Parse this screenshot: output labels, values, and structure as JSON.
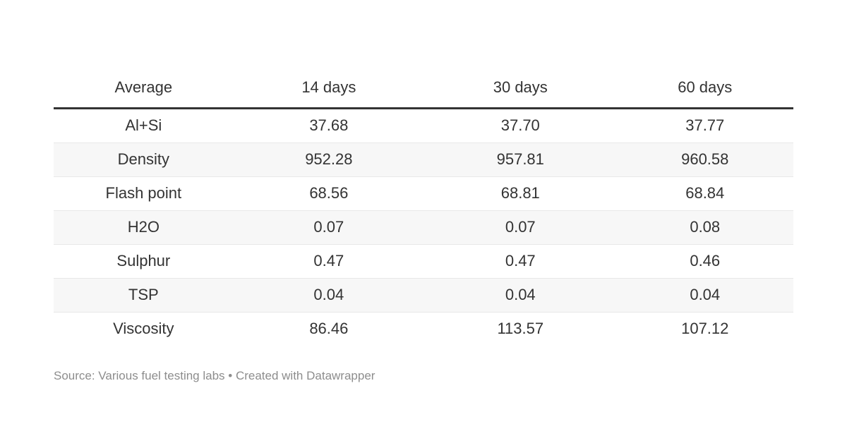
{
  "chart_data": {
    "type": "table",
    "title": "",
    "columns": [
      "Average",
      "14 days",
      "30 days",
      "60 days"
    ],
    "rows": [
      [
        "Al+Si",
        "37.68",
        "37.70",
        "37.77"
      ],
      [
        "Density",
        "952.28",
        "957.81",
        "960.58"
      ],
      [
        "Flash point",
        "68.56",
        "68.81",
        "68.84"
      ],
      [
        "H2O",
        "0.07",
        "0.07",
        "0.08"
      ],
      [
        "Sulphur",
        "0.47",
        "0.47",
        "0.46"
      ],
      [
        "TSP",
        "0.04",
        "0.04",
        "0.04"
      ],
      [
        "Viscosity",
        "86.46",
        "113.57",
        "107.12"
      ]
    ],
    "layout": {
      "striped_rows": true,
      "header_rule": true,
      "alignment": "center"
    }
  },
  "table": {
    "columns": [
      "Average",
      "14 days",
      "30 days",
      "60 days"
    ],
    "rows": [
      {
        "label": "Al+Si",
        "values": [
          "37.68",
          "37.70",
          "37.77"
        ]
      },
      {
        "label": "Density",
        "values": [
          "952.28",
          "957.81",
          "960.58"
        ]
      },
      {
        "label": "Flash point",
        "values": [
          "68.56",
          "68.81",
          "68.84"
        ]
      },
      {
        "label": "H2O",
        "values": [
          "0.07",
          "0.07",
          "0.08"
        ]
      },
      {
        "label": "Sulphur",
        "values": [
          "0.47",
          "0.47",
          "0.46"
        ]
      },
      {
        "label": "TSP",
        "values": [
          "0.04",
          "0.04",
          "0.04"
        ]
      },
      {
        "label": "Viscosity",
        "values": [
          "86.46",
          "113.57",
          "107.12"
        ]
      }
    ]
  },
  "footer": {
    "source_text": "Source: Various fuel testing labs",
    "separator": " • ",
    "credit": "Created with Datawrapper"
  },
  "colors": {
    "background": "#ffffff",
    "text": "#333333",
    "header_border": "#333333",
    "stripe": "#f7f7f7",
    "row_border": "#e8e8e8",
    "footer_text": "#8d8d8d"
  }
}
